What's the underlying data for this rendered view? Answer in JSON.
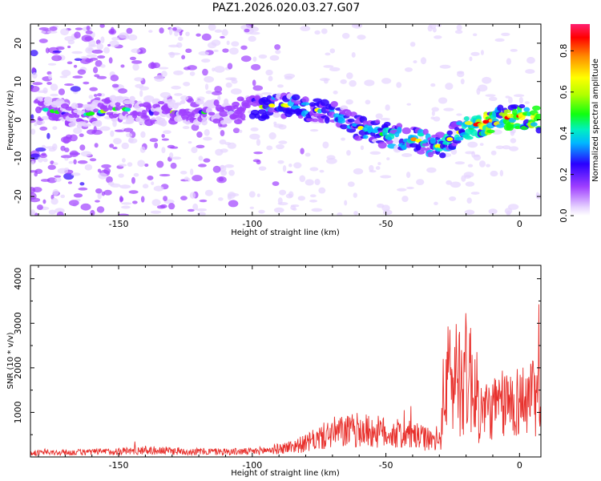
{
  "title": "PAZ1.2026.020.03.27.G07",
  "chart_data": [
    {
      "type": "heatmap",
      "title": "PAZ1.2026.020.03.27.G07",
      "xlabel": "Height of straight line (km)",
      "ylabel": "Frequency (Hz)",
      "xlim": [
        -183,
        8
      ],
      "ylim": [
        -25,
        25
      ],
      "xticks": [
        -150,
        -100,
        -50,
        0
      ],
      "yticks": [
        -20,
        -10,
        0,
        10,
        20
      ],
      "ridge": {
        "x": [
          -180,
          -165,
          -150,
          -140,
          -130,
          -120,
          -110,
          -100,
          -90,
          -80,
          -70,
          -60,
          -50,
          -40,
          -30,
          -20,
          -10,
          0,
          8
        ],
        "freq": [
          3,
          1,
          3,
          2,
          2,
          2,
          2,
          3,
          4,
          3,
          2,
          -2,
          -4,
          -5,
          -7,
          -2,
          0,
          1,
          0
        ]
      },
      "colorbar": {
        "label": "Normalized spectral amplitude",
        "ticks": [
          "0.0",
          "0.2",
          "0.4",
          "0.6",
          "0.8"
        ],
        "range": [
          0,
          0.93
        ]
      }
    },
    {
      "type": "line",
      "xlabel": "Height of straight line (km)",
      "ylabel": "SNR (10 * v/v)",
      "xlim": [
        -183,
        8
      ],
      "ylim": [
        0,
        4300
      ],
      "xticks": [
        -150,
        -100,
        -50,
        0
      ],
      "yticks": [
        1000,
        2000,
        3000,
        4000
      ],
      "color": "#e8302c",
      "envelope": {
        "x": [
          -183,
          -160,
          -140,
          -120,
          -100,
          -90,
          -80,
          -75,
          -70,
          -60,
          -50,
          -40,
          -32,
          -30,
          -28,
          -25,
          -22,
          -18,
          -15,
          -10,
          -5,
          0,
          5,
          8
        ],
        "y": [
          150,
          180,
          250,
          200,
          200,
          300,
          500,
          700,
          900,
          1000,
          900,
          800,
          600,
          500,
          2500,
          2800,
          2900,
          2800,
          1700,
          1800,
          2000,
          2100,
          2200,
          2200
        ]
      }
    }
  ]
}
